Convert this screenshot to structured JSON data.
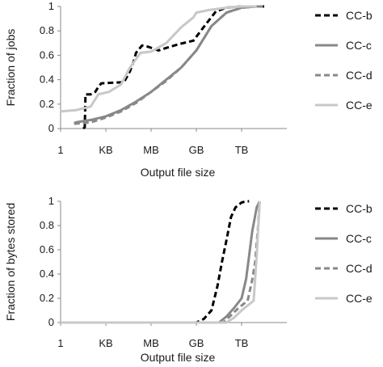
{
  "chart_data": [
    {
      "type": "line",
      "ylabel": "Fraction of jobs",
      "xlabel": "Output file size",
      "x_tick_labels": [
        "1",
        "KB",
        "MB",
        "GB",
        "TB"
      ],
      "x_tick_exponents": [
        0,
        3,
        6,
        9,
        12
      ],
      "xlim": [
        0,
        15
      ],
      "ylim": [
        0,
        1
      ],
      "y_ticks": [
        "0",
        "0.2",
        "0.4",
        "0.6",
        "0.8",
        "1"
      ],
      "legend_position": "right",
      "series": [
        {
          "name": "CC-b",
          "color": "#000000",
          "style": "dash",
          "points": [
            [
              1.5,
              0
            ],
            [
              1.6,
              0.01
            ],
            [
              1.65,
              0.28
            ],
            [
              2.0,
              0.28
            ],
            [
              2.3,
              0.3
            ],
            [
              2.55,
              0.35
            ],
            [
              2.7,
              0.37
            ],
            [
              4.2,
              0.38
            ],
            [
              4.6,
              0.47
            ],
            [
              4.85,
              0.55
            ],
            [
              5.0,
              0.62
            ],
            [
              5.4,
              0.68
            ],
            [
              5.8,
              0.67
            ],
            [
              6.5,
              0.64
            ],
            [
              7.0,
              0.66
            ],
            [
              7.8,
              0.69
            ],
            [
              8.8,
              0.72
            ],
            [
              9.6,
              0.85
            ],
            [
              10.3,
              0.96
            ],
            [
              11.0,
              0.99
            ],
            [
              12.0,
              1.0
            ],
            [
              13.5,
              1.0
            ]
          ]
        },
        {
          "name": "CC-c",
          "color": "#888888",
          "style": "solid",
          "points": [
            [
              0.9,
              0.04
            ],
            [
              1.0,
              0.05
            ],
            [
              2.0,
              0.07
            ],
            [
              3.0,
              0.1
            ],
            [
              4.0,
              0.15
            ],
            [
              5.0,
              0.22
            ],
            [
              6.0,
              0.3
            ],
            [
              7.0,
              0.4
            ],
            [
              8.0,
              0.5
            ],
            [
              9.0,
              0.64
            ],
            [
              10.0,
              0.84
            ],
            [
              11.0,
              0.95
            ],
            [
              12.0,
              0.99
            ],
            [
              13.0,
              1.0
            ],
            [
              13.4,
              1.0
            ]
          ]
        },
        {
          "name": "CC-d",
          "color": "#888888",
          "style": "dash",
          "points": [
            [
              0.9,
              0.04
            ],
            [
              1.0,
              0.04
            ],
            [
              2.0,
              0.05
            ],
            [
              3.0,
              0.09
            ],
            [
              4.0,
              0.14
            ],
            [
              5.0,
              0.21
            ],
            [
              6.0,
              0.3
            ],
            [
              7.0,
              0.39
            ],
            [
              8.0,
              0.5
            ],
            [
              9.0,
              0.64
            ],
            [
              10.0,
              0.84
            ],
            [
              11.0,
              0.95
            ],
            [
              12.0,
              0.99
            ],
            [
              13.0,
              1.0
            ],
            [
              13.3,
              1.0
            ]
          ]
        },
        {
          "name": "CC-e",
          "color": "#c8c8c8",
          "style": "solid",
          "points": [
            [
              0,
              0.14
            ],
            [
              1.0,
              0.15
            ],
            [
              2.0,
              0.18
            ],
            [
              2.5,
              0.28
            ],
            [
              3.2,
              0.3
            ],
            [
              4.0,
              0.36
            ],
            [
              4.6,
              0.5
            ],
            [
              5.3,
              0.62
            ],
            [
              6.0,
              0.63
            ],
            [
              7.0,
              0.7
            ],
            [
              8.0,
              0.83
            ],
            [
              8.8,
              0.91
            ],
            [
              9.0,
              0.95
            ],
            [
              9.8,
              0.97
            ],
            [
              11.0,
              0.99
            ],
            [
              12.0,
              1.0
            ],
            [
              13.0,
              1.0
            ]
          ]
        }
      ]
    },
    {
      "type": "line",
      "ylabel": "Fraction of bytes stored",
      "xlabel": "Output file size",
      "x_tick_labels": [
        "1",
        "KB",
        "MB",
        "GB",
        "TB"
      ],
      "x_tick_exponents": [
        0,
        3,
        6,
        9,
        12
      ],
      "xlim": [
        0,
        15
      ],
      "ylim": [
        0,
        1
      ],
      "y_ticks": [
        "0",
        "0.2",
        "0.4",
        "0.6",
        "0.8",
        "1"
      ],
      "legend_position": "right",
      "series": [
        {
          "name": "CC-b",
          "color": "#000000",
          "style": "dash",
          "points": [
            [
              0,
              0
            ],
            [
              9.0,
              0.0
            ],
            [
              9.5,
              0.03
            ],
            [
              10.0,
              0.1
            ],
            [
              10.4,
              0.3
            ],
            [
              10.7,
              0.5
            ],
            [
              11.0,
              0.68
            ],
            [
              11.3,
              0.87
            ],
            [
              11.6,
              0.95
            ],
            [
              12.0,
              0.99
            ],
            [
              12.3,
              1.0
            ],
            [
              12.5,
              1.0
            ]
          ]
        },
        {
          "name": "CC-c",
          "color": "#888888",
          "style": "solid",
          "points": [
            [
              0,
              0
            ],
            [
              10.5,
              0.0
            ],
            [
              11.0,
              0.05
            ],
            [
              11.5,
              0.12
            ],
            [
              12.0,
              0.2
            ],
            [
              12.3,
              0.36
            ],
            [
              12.5,
              0.55
            ],
            [
              12.7,
              0.75
            ],
            [
              13.0,
              0.95
            ],
            [
              13.2,
              1.0
            ]
          ]
        },
        {
          "name": "CC-d",
          "color": "#888888",
          "style": "dash",
          "points": [
            [
              0,
              0
            ],
            [
              10.8,
              0.0
            ],
            [
              11.3,
              0.06
            ],
            [
              11.8,
              0.12
            ],
            [
              12.4,
              0.18
            ],
            [
              12.7,
              0.35
            ],
            [
              12.9,
              0.5
            ],
            [
              13.1,
              0.8
            ],
            [
              13.2,
              1.0
            ]
          ]
        },
        {
          "name": "CC-e",
          "color": "#c8c8c8",
          "style": "solid",
          "points": [
            [
              0,
              0
            ],
            [
              11.0,
              0.0
            ],
            [
              11.5,
              0.04
            ],
            [
              12.0,
              0.1
            ],
            [
              12.8,
              0.18
            ],
            [
              13.0,
              0.55
            ],
            [
              13.2,
              1.0
            ]
          ]
        }
      ]
    }
  ]
}
